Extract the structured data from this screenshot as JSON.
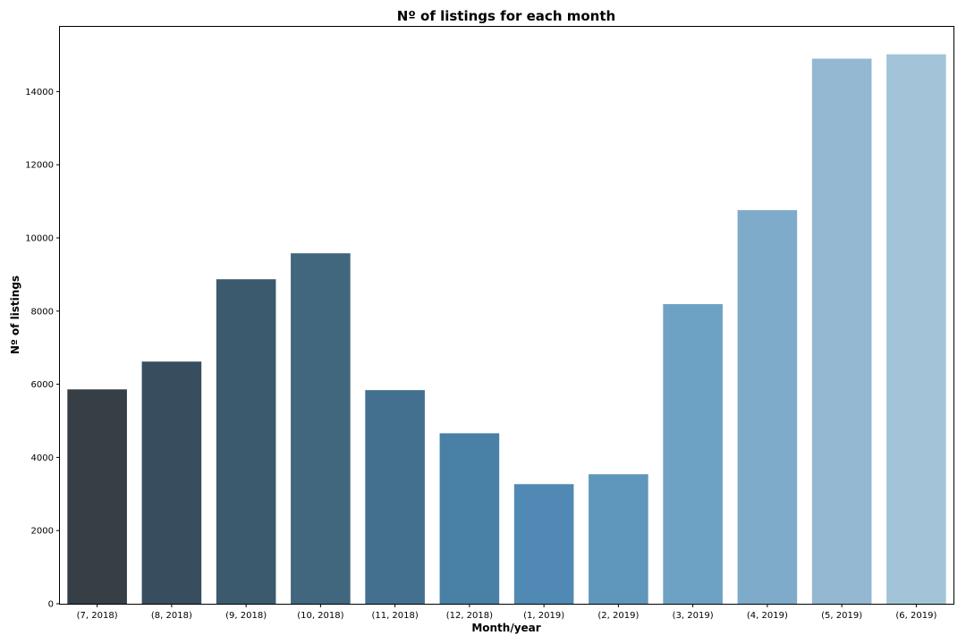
{
  "chart_data": {
    "type": "bar",
    "title": "Nº of listings for each month",
    "xlabel": "Month/year",
    "ylabel": "Nº of listings",
    "categories": [
      "(7, 2018)",
      "(8, 2018)",
      "(9, 2018)",
      "(10, 2018)",
      "(11, 2018)",
      "(12, 2018)",
      "(1, 2019)",
      "(2, 2019)",
      "(3, 2019)",
      "(4, 2019)",
      "(5, 2019)",
      "(6, 2019)"
    ],
    "values": [
      5860,
      6620,
      8870,
      9580,
      5840,
      4660,
      3270,
      3540,
      8190,
      10760,
      14900,
      15020
    ],
    "ylim": [
      0,
      15770
    ],
    "yticks": [
      0,
      2000,
      4000,
      6000,
      8000,
      10000,
      12000,
      14000
    ],
    "colors": [
      "#363e46",
      "#384e5e",
      "#3c5a6e",
      "#41677f",
      "#43708f",
      "#4880a6",
      "#5089b3",
      "#5f96bb",
      "#6ea2c5",
      "#7fabcb",
      "#94b8d2",
      "#a3c4d8"
    ],
    "grid": false,
    "legend": "none"
  }
}
